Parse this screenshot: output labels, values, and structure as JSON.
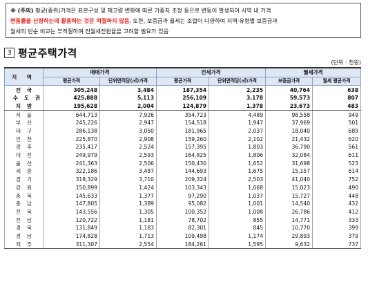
{
  "note": {
    "label": "※ (주의)",
    "line1": " 평균(중위)가격은 표본구성 및 재고량 변화에 따른 가중치 조정 등으로 변동이 발생되어 시역 내 가격",
    "line2_red": "변동률을 산정하는데 활용하는 것은 적절하지 않음",
    "line2_rest": ". 또한, 보증금과 월세는 조합이 다양하여 지역·유형별 보증금과",
    "line3": "월세의 단순 비교는 부적절하며 전월세전환율을 고려할 필요가 있음"
  },
  "section": {
    "number": "3",
    "title": "평균주택가격",
    "unit": "(단위 : 천원)"
  },
  "table": {
    "header": {
      "region": "지 역",
      "sale": "매매가격",
      "jeonse": "전세가격",
      "monthly": "월세가격",
      "avg_price": "평균가격",
      "unit_price": "단위면적당(㎡)가격",
      "deposit": "보증금가격",
      "monthly_avg": "월세 평균가격"
    },
    "rows": [
      {
        "region": "전국",
        "c1": "305,248",
        "c2": "3,484",
        "c3": "187,354",
        "c4": "2,235",
        "c5": "40,764",
        "c6": "638",
        "bold": true
      },
      {
        "region": "수도권",
        "c1": "425,888",
        "c2": "5,113",
        "c3": "256,109",
        "c4": "3,178",
        "c5": "59,573",
        "c6": "807",
        "bold": true
      },
      {
        "region": "지방",
        "c1": "195,628",
        "c2": "2,004",
        "c3": "124,879",
        "c4": "1,378",
        "c5": "23,673",
        "c6": "483",
        "bold": true
      },
      {
        "region": "서울",
        "c1": "644,713",
        "c2": "7,926",
        "c3": "354,723",
        "c4": "4,489",
        "c5": "98,558",
        "c6": "949"
      },
      {
        "region": "부산",
        "c1": "245,226",
        "c2": "2,947",
        "c3": "154,518",
        "c4": "1,947",
        "c5": "37,969",
        "c6": "501"
      },
      {
        "region": "대구",
        "c1": "286,138",
        "c2": "3,050",
        "c3": "181,965",
        "c4": "2,037",
        "c5": "18,040",
        "c6": "689"
      },
      {
        "region": "인천",
        "c1": "225,870",
        "c2": "2,908",
        "c3": "159,260",
        "c4": "2,102",
        "c5": "21,432",
        "c6": "620"
      },
      {
        "region": "광주",
        "c1": "235,417",
        "c2": "2,524",
        "c3": "157,395",
        "c4": "1,803",
        "c5": "36,790",
        "c6": "561"
      },
      {
        "region": "대전",
        "c1": "249,979",
        "c2": "2,593",
        "c3": "164,825",
        "c4": "1,806",
        "c5": "32,084",
        "c6": "611"
      },
      {
        "region": "울산",
        "c1": "241,363",
        "c2": "2,506",
        "c3": "150,430",
        "c4": "1,652",
        "c5": "31,698",
        "c6": "523"
      },
      {
        "region": "세종",
        "c1": "322,186",
        "c2": "3,487",
        "c3": "144,693",
        "c4": "1,675",
        "c5": "15,157",
        "c6": "614"
      },
      {
        "region": "경기",
        "c1": "318,329",
        "c2": "3,710",
        "c3": "209,324",
        "c4": "2,503",
        "c5": "41,040",
        "c6": "752"
      },
      {
        "region": "강원",
        "c1": "150,899",
        "c2": "1,424",
        "c3": "103,343",
        "c4": "1,068",
        "c5": "15,023",
        "c6": "490"
      },
      {
        "region": "충북",
        "c1": "145,633",
        "c2": "1,377",
        "c3": "97,290",
        "c4": "1,037",
        "c5": "15,727",
        "c6": "448"
      },
      {
        "region": "충남",
        "c1": "147,805",
        "c2": "1,389",
        "c3": "95,082",
        "c4": "1,001",
        "c5": "14,540",
        "c6": "432"
      },
      {
        "region": "전북",
        "c1": "143,556",
        "c2": "1,305",
        "c3": "100,352",
        "c4": "1,008",
        "c5": "26,786",
        "c6": "412"
      },
      {
        "region": "전남",
        "c1": "120,722",
        "c2": "1,181",
        "c3": "78,702",
        "c4": "855",
        "c5": "14,771",
        "c6": "333"
      },
      {
        "region": "경북",
        "c1": "131,849",
        "c2": "1,183",
        "c3": "82,301",
        "c4": "845",
        "c5": "10,770",
        "c6": "399"
      },
      {
        "region": "경남",
        "c1": "174,828",
        "c2": "1,713",
        "c3": "109,498",
        "c4": "1,174",
        "c5": "29,893",
        "c6": "379"
      },
      {
        "region": "제주",
        "c1": "311,307",
        "c2": "2,554",
        "c3": "184,261",
        "c4": "1,595",
        "c5": "9,632",
        "c6": "737"
      }
    ]
  }
}
